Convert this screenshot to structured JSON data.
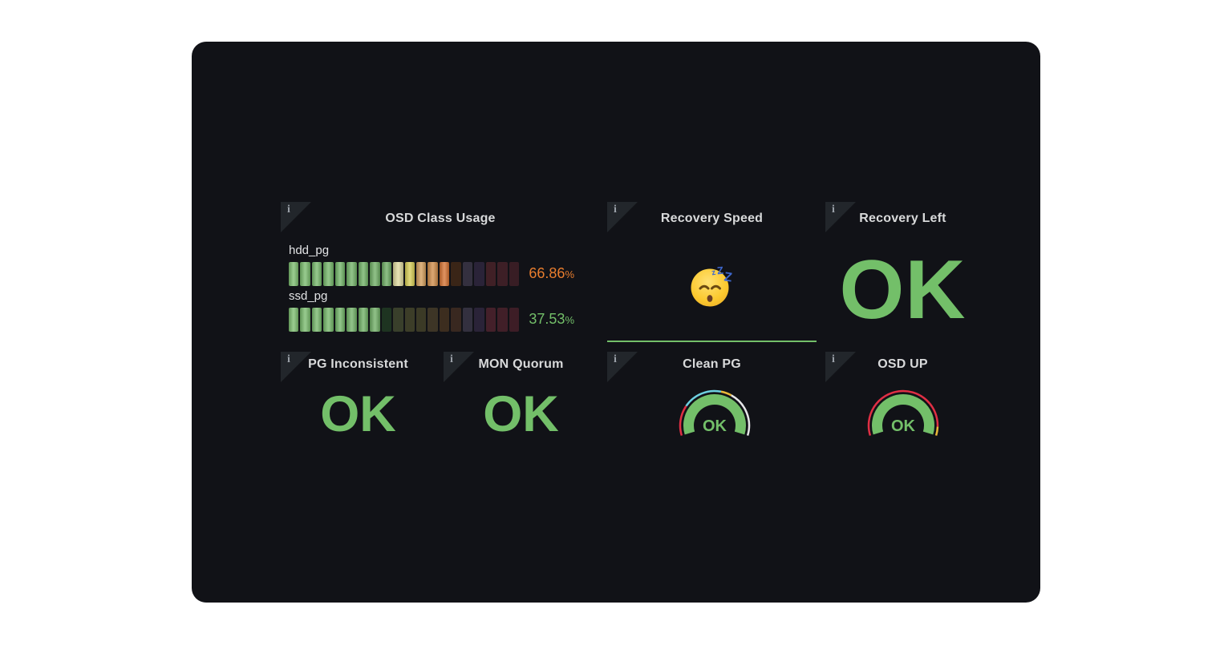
{
  "dashboard": {
    "page_bg": "#ffffff",
    "bg": "#111217",
    "accent_green": "#73bf69",
    "accent_orange": "#e87d2e"
  },
  "info_corner": {
    "icon_glyph": "i"
  },
  "panels": {
    "osd_class_usage": {
      "title": "OSD Class Usage",
      "rows": [
        {
          "label": "hdd_pg",
          "value": "66.86",
          "unit": "%",
          "value_color": "#e87d2e",
          "lit": 14,
          "cells": [
            "#7aba6d",
            "#76b86a",
            "#74b669",
            "#72b467",
            "#70b266",
            "#6fb065",
            "#6dae63",
            "#6cab62",
            "#69a75f",
            "#ddd79c",
            "#d6cc55",
            "#d09a58",
            "#cd8a47",
            "#d2702f",
            "#3a2517",
            "#34303f",
            "#2a2338",
            "#402026",
            "#3d1f26",
            "#381d24"
          ]
        },
        {
          "label": "ssd_pg",
          "value": "37.53",
          "unit": "%",
          "value_color": "#73bf69",
          "lit": 8,
          "cells": [
            "#7aba6d",
            "#76b86a",
            "#74b669",
            "#72b467",
            "#70b266",
            "#6fb065",
            "#6dae63",
            "#6cab62",
            "#1e3421",
            "#393f2b",
            "#3c3d28",
            "#3b3a26",
            "#3d3526",
            "#3c2d1f",
            "#392820",
            "#33303f",
            "#2a2338",
            "#44202a",
            "#411f28",
            "#3d1d26"
          ]
        }
      ]
    },
    "recovery_speed": {
      "title": "Recovery Speed",
      "emoji": "sleeping-face",
      "spark_color": "#73bf69"
    },
    "recovery_left": {
      "title": "Recovery Left",
      "value": "OK",
      "value_color": "#73bf69"
    },
    "pg_inconsistent": {
      "title": "PG Inconsistent",
      "value": "OK",
      "value_color": "#73bf69"
    },
    "mon_quorum": {
      "title": "MON Quorum",
      "value": "OK",
      "value_color": "#73bf69"
    },
    "clean_pg": {
      "title": "Clean PG",
      "value": "OK",
      "gauge": {
        "sweep": 214,
        "band_color": "#73bf69",
        "ring": [
          {
            "color": "#e02f44",
            "frac": 0.24
          },
          {
            "color": "#6ed0e0",
            "frac": 0.31
          },
          {
            "color": "#eab839",
            "frac": 0.085
          },
          {
            "color": "#e6e6e8",
            "frac": 0.365
          }
        ]
      }
    },
    "osd_up": {
      "title": "OSD UP",
      "value": "OK",
      "gauge": {
        "sweep": 214,
        "band_color": "#73bf69",
        "ring": [
          {
            "color": "#e02f44",
            "frac": 0.93
          },
          {
            "color": "#eab839",
            "frac": 0.07
          }
        ]
      }
    }
  }
}
